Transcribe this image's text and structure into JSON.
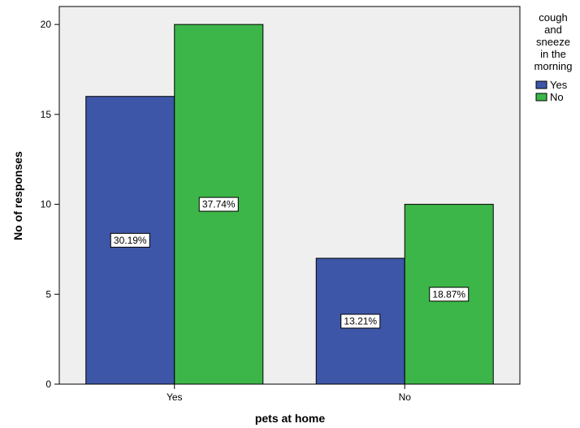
{
  "chart_data": {
    "type": "bar",
    "xlabel": "pets at home",
    "ylabel": "No of responses",
    "categories": [
      "Yes",
      "No"
    ],
    "ylim": [
      0,
      21
    ],
    "yticks": [
      0,
      5,
      10,
      15,
      20
    ],
    "grid": false,
    "legend": {
      "title": [
        "cough",
        "and",
        "sneeze",
        "in the",
        "morning"
      ],
      "placement": "top-right",
      "entries": [
        "Yes",
        "No"
      ]
    },
    "series": [
      {
        "name": "Yes",
        "color": "#3e56a8",
        "values": [
          16,
          7
        ],
        "labels": [
          "30.19%",
          "13.21%"
        ]
      },
      {
        "name": "No",
        "color": "#3cb648",
        "values": [
          20,
          10
        ],
        "labels": [
          "37.74%",
          "18.87%"
        ]
      }
    ]
  }
}
